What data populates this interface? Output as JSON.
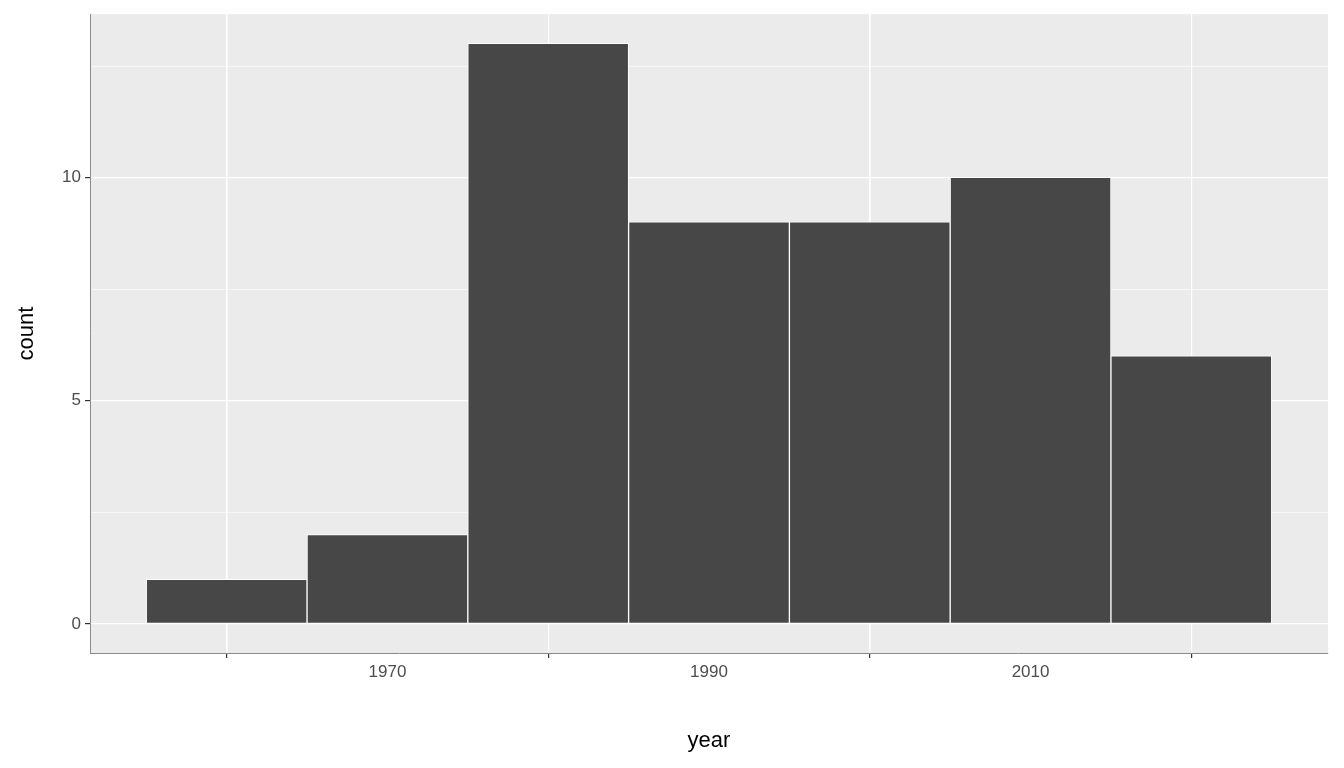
{
  "chart_data": {
    "type": "histogram",
    "bins": [
      1955,
      1965,
      1975,
      1985,
      1995,
      2005,
      2015,
      2025
    ],
    "counts": [
      1,
      2,
      13,
      9,
      9,
      10,
      6
    ],
    "x_label": "year",
    "y_label": "count",
    "xlim": [
      1951.5,
      2028.5
    ],
    "xticks": [
      1970,
      1990,
      2010
    ],
    "ylim": [
      -0.65,
      13.65
    ],
    "yticks": [
      0,
      5,
      10
    ],
    "color": "#474747",
    "grid": true
  }
}
